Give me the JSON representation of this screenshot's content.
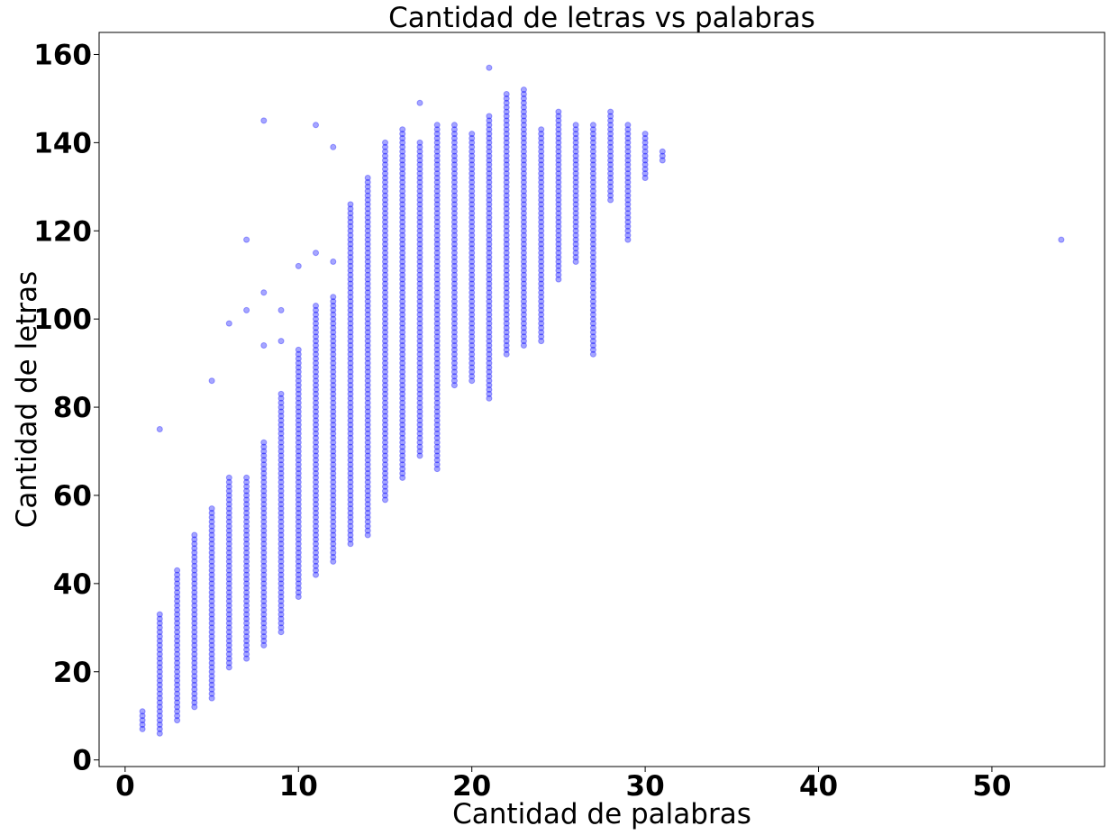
{
  "chart_data": {
    "type": "scatter",
    "title": "Cantidad de letras vs palabras",
    "xlabel": "Cantidad de palabras",
    "ylabel": "Cantidad de letras",
    "xlim": [
      -1.5,
      56.5
    ],
    "ylim": [
      -1.5,
      165
    ],
    "xticks": [
      0,
      10,
      20,
      30,
      40,
      50
    ],
    "yticks": [
      0,
      20,
      40,
      60,
      80,
      100,
      120,
      140,
      160
    ],
    "xtick_labels": [
      "0",
      "10",
      "20",
      "30",
      "40",
      "50"
    ],
    "ytick_labels": [
      "0",
      "20",
      "40",
      "60",
      "80",
      "100",
      "120",
      "140",
      "160"
    ],
    "grid": false,
    "legend": "none",
    "marker": {
      "color": "#0000ff",
      "alpha": 0.35,
      "shape": "circle"
    },
    "series": [
      {
        "columns": [
          {
            "x": 1,
            "y_min": 7,
            "y_max": 11
          },
          {
            "x": 2,
            "y_min": 6,
            "y_max": 33
          },
          {
            "x": 3,
            "y_min": 9,
            "y_max": 43
          },
          {
            "x": 4,
            "y_min": 12,
            "y_max": 51
          },
          {
            "x": 5,
            "y_min": 14,
            "y_max": 57
          },
          {
            "x": 6,
            "y_min": 21,
            "y_max": 64
          },
          {
            "x": 7,
            "y_min": 23,
            "y_max": 64
          },
          {
            "x": 8,
            "y_min": 26,
            "y_max": 72
          },
          {
            "x": 9,
            "y_min": 29,
            "y_max": 83
          },
          {
            "x": 10,
            "y_min": 37,
            "y_max": 93
          },
          {
            "x": 11,
            "y_min": 42,
            "y_max": 103
          },
          {
            "x": 12,
            "y_min": 45,
            "y_max": 105
          },
          {
            "x": 13,
            "y_min": 49,
            "y_max": 126
          },
          {
            "x": 14,
            "y_min": 51,
            "y_max": 132
          },
          {
            "x": 15,
            "y_min": 59,
            "y_max": 140
          },
          {
            "x": 16,
            "y_min": 64,
            "y_max": 143
          },
          {
            "x": 17,
            "y_min": 69,
            "y_max": 140
          },
          {
            "x": 18,
            "y_min": 66,
            "y_max": 144
          },
          {
            "x": 19,
            "y_min": 85,
            "y_max": 144
          },
          {
            "x": 20,
            "y_min": 86,
            "y_max": 142
          },
          {
            "x": 21,
            "y_min": 82,
            "y_max": 146
          },
          {
            "x": 22,
            "y_min": 92,
            "y_max": 151
          },
          {
            "x": 23,
            "y_min": 94,
            "y_max": 152
          },
          {
            "x": 24,
            "y_min": 95,
            "y_max": 143
          },
          {
            "x": 25,
            "y_min": 109,
            "y_max": 147
          },
          {
            "x": 26,
            "y_min": 113,
            "y_max": 144
          },
          {
            "x": 27,
            "y_min": 92,
            "y_max": 144
          },
          {
            "x": 28,
            "y_min": 127,
            "y_max": 147
          },
          {
            "x": 29,
            "y_min": 118,
            "y_max": 144
          },
          {
            "x": 30,
            "y_min": 132,
            "y_max": 142
          },
          {
            "x": 31,
            "y_min": 136,
            "y_max": 138
          }
        ],
        "outliers": [
          {
            "x": 2,
            "y": 75
          },
          {
            "x": 5,
            "y": 86
          },
          {
            "x": 6,
            "y": 99
          },
          {
            "x": 7,
            "y": 102
          },
          {
            "x": 7,
            "y": 118
          },
          {
            "x": 8,
            "y": 94
          },
          {
            "x": 8,
            "y": 106
          },
          {
            "x": 8,
            "y": 145
          },
          {
            "x": 9,
            "y": 95
          },
          {
            "x": 9,
            "y": 102
          },
          {
            "x": 10,
            "y": 112
          },
          {
            "x": 11,
            "y": 115
          },
          {
            "x": 11,
            "y": 144
          },
          {
            "x": 12,
            "y": 113
          },
          {
            "x": 12,
            "y": 139
          },
          {
            "x": 17,
            "y": 149
          },
          {
            "x": 21,
            "y": 157
          },
          {
            "x": 54,
            "y": 118
          }
        ]
      }
    ]
  }
}
